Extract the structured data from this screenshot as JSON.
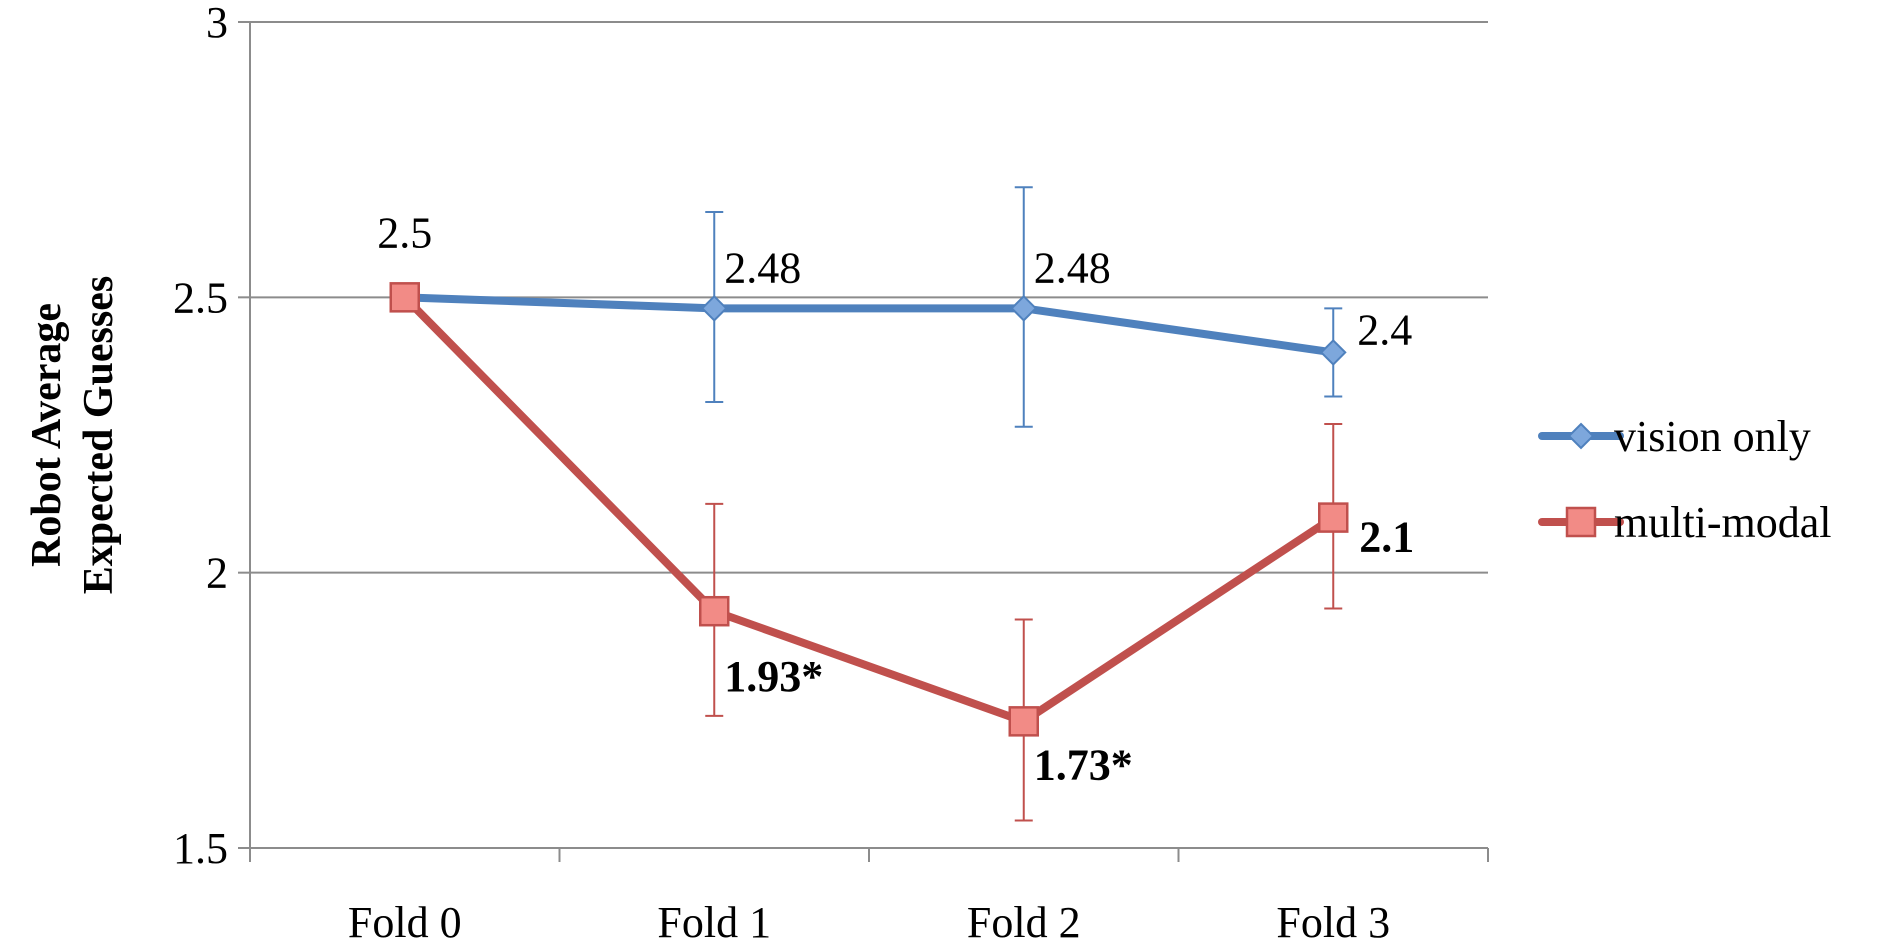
{
  "chart_data": {
    "type": "line",
    "title": "",
    "xlabel": "",
    "ylabel_lines": [
      "Robot Average",
      "Expected Guesses"
    ],
    "categories": [
      "Fold 0",
      "Fold 1",
      "Fold 2",
      "Fold 3"
    ],
    "ylim": [
      1.5,
      3
    ],
    "yticks": [
      1.5,
      2,
      2.5,
      3
    ],
    "ytick_labels": [
      "1.5",
      "2",
      "2.5",
      "3"
    ],
    "grid": "horizontal",
    "legend_position": "right",
    "series": [
      {
        "name": "vision only",
        "color": "#4f81bd",
        "marker": "diamond",
        "values": [
          2.5,
          2.48,
          2.48,
          2.4
        ],
        "error_low": [
          null,
          2.31,
          2.265,
          2.32
        ],
        "error_high": [
          null,
          2.655,
          2.7,
          2.48
        ],
        "labels": [
          "2.5",
          "2.48",
          "2.48",
          "2.4"
        ],
        "label_bold": [
          false,
          false,
          false,
          false
        ]
      },
      {
        "name": "multi-modal",
        "color": "#c0504d",
        "marker": "square",
        "values": [
          2.5,
          1.93,
          1.73,
          2.1
        ],
        "error_low": [
          null,
          1.74,
          1.55,
          1.935
        ],
        "error_high": [
          null,
          2.125,
          1.915,
          2.27
        ],
        "labels": [
          "",
          "1.93*",
          "1.73*",
          "2.1"
        ],
        "label_bold": [
          false,
          true,
          true,
          true
        ]
      }
    ]
  }
}
